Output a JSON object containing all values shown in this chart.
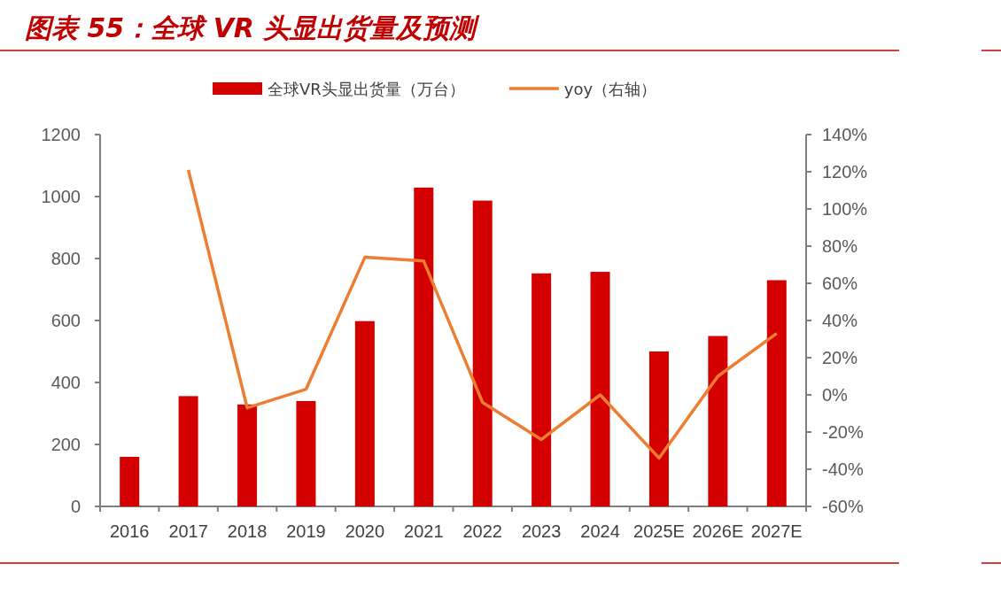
{
  "chart_data": {
    "type": "bar",
    "title": "图表 55：全球 VR 头显出货量及预测",
    "categories": [
      "2016",
      "2017",
      "2018",
      "2019",
      "2020",
      "2021",
      "2022",
      "2023",
      "2024",
      "2025E",
      "2026E",
      "2027E"
    ],
    "series": [
      {
        "name": "全球VR头显出货量（万台）",
        "color": "#d40000",
        "values": [
          160,
          356,
          329,
          340,
          598,
          1029,
          987,
          752,
          757,
          500,
          550,
          730
        ]
      },
      {
        "name": "yoy（右轴）",
        "type": "line",
        "axis": "y2",
        "color": "#ed7d31",
        "values": [
          null,
          121,
          -7,
          3,
          74,
          72,
          -4,
          -24,
          0,
          -34,
          10,
          33
        ]
      }
    ],
    "ylim": [
      0,
      1200
    ],
    "yticks": [
      0,
      200,
      400,
      600,
      800,
      1000,
      1200
    ],
    "y2lim": [
      -60,
      140
    ],
    "y2ticks": [
      {
        "value": -60,
        "label": "-60%"
      },
      {
        "value": -40,
        "label": "-40%"
      },
      {
        "value": -20,
        "label": "-20%"
      },
      {
        "value": 0,
        "label": "0%"
      },
      {
        "value": 20,
        "label": "20%"
      },
      {
        "value": 40,
        "label": "40%"
      },
      {
        "value": 60,
        "label": "60%"
      },
      {
        "value": 80,
        "label": "80%"
      },
      {
        "value": 100,
        "label": "100%"
      },
      {
        "value": 120,
        "label": "120%"
      },
      {
        "value": 140,
        "label": "140%"
      }
    ],
    "legend": "top",
    "grid": false
  }
}
